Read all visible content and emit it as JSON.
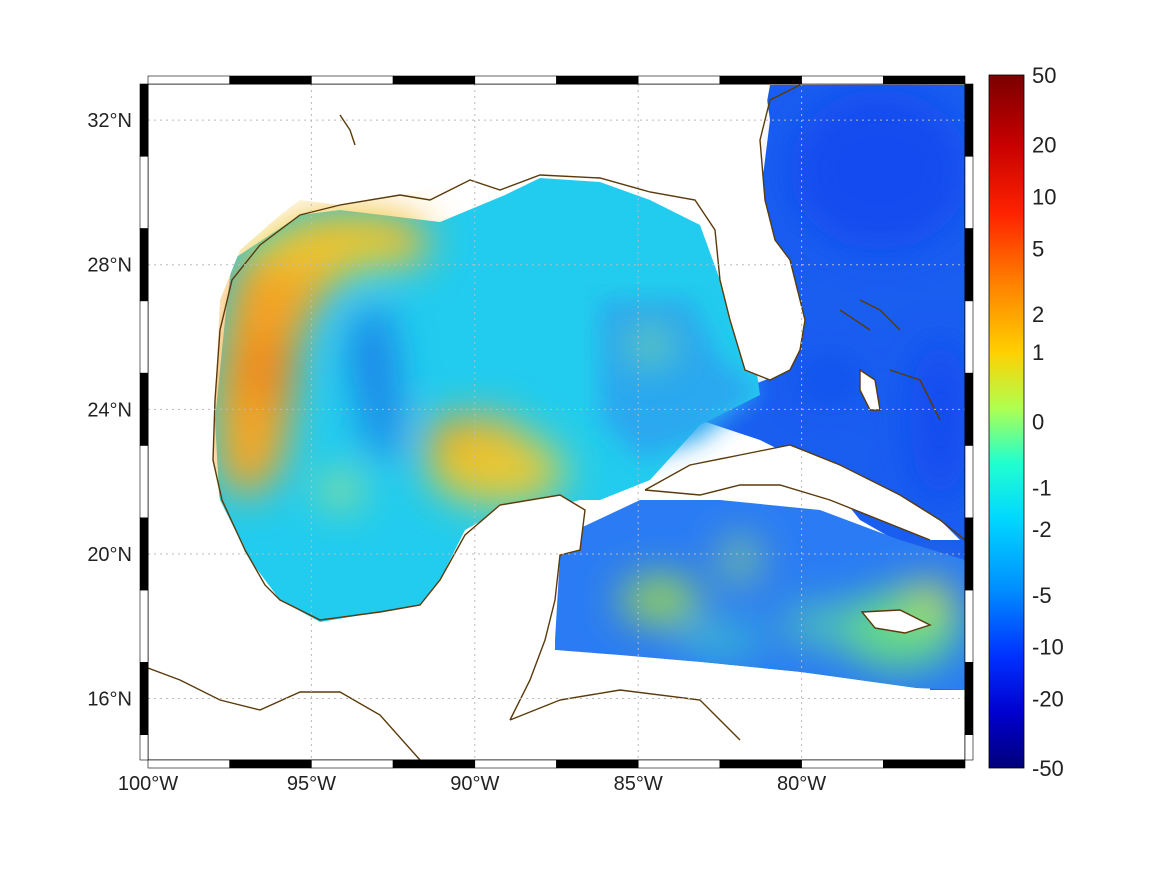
{
  "map": {
    "lon_labels": [
      "100°W",
      "95°W",
      "90°W",
      "85°W",
      "80°W"
    ],
    "lat_labels": [
      "32°N",
      "28°N",
      "24°N",
      "20°N",
      "16°N"
    ],
    "extent": {
      "lon_min": -100,
      "lon_max": -75,
      "lat_min": 14.3,
      "lat_max": 33
    },
    "coastline_color": "#5a3a0a",
    "grid": true,
    "field_regions": [
      {
        "name": "western-gulf-warm",
        "color": "#f5a623"
      },
      {
        "name": "loop-warm-patch",
        "color": "#f0a020"
      },
      {
        "name": "central-gulf",
        "color": "#22ccee"
      },
      {
        "name": "atlantic-east",
        "color": "#1155ee"
      },
      {
        "name": "caribbean-south",
        "color": "#66dd88"
      }
    ]
  },
  "colorbar": {
    "labels": [
      "50",
      "20",
      "10",
      "5",
      "2",
      "1",
      "0",
      "-1",
      "-2",
      "-5",
      "-10",
      "-20",
      "-50"
    ],
    "colors": [
      "#7a0000",
      "#c40000",
      "#ff2a00",
      "#ff7a00",
      "#ffc000",
      "#e8f000",
      "#80ff80",
      "#10f0f0",
      "#00c8ff",
      "#0080ff",
      "#0030ff",
      "#0000c0",
      "#00007a"
    ]
  }
}
